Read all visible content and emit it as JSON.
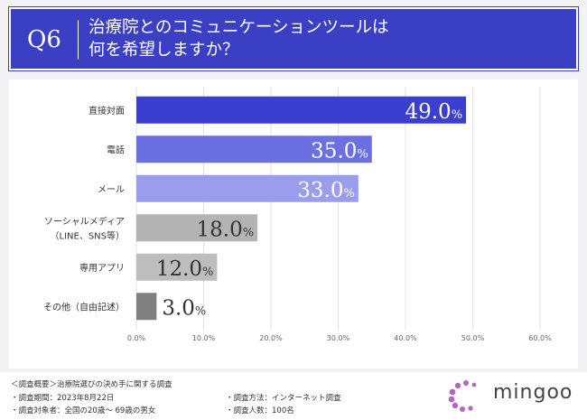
{
  "header": {
    "badge": "Q6",
    "title": "治療院とのコミュニケーションツールは\n何を希望しますか？"
  },
  "chart_data": {
    "type": "bar",
    "orientation": "horizontal",
    "categories": [
      {
        "lines": [
          "直接対面"
        ]
      },
      {
        "lines": [
          "電話"
        ]
      },
      {
        "lines": [
          "メール"
        ]
      },
      {
        "lines": [
          "ソーシャルメディア",
          "（LINE、SNS等）"
        ]
      },
      {
        "lines": [
          "専用アプリ"
        ]
      },
      {
        "lines": [
          "その他（自由記述）"
        ]
      }
    ],
    "values": [
      49.0,
      35.0,
      33.0,
      18.0,
      12.0,
      3.0
    ],
    "value_unit": "%",
    "bar_colors": [
      "#3a3fcf",
      "#6b6fe0",
      "#9a9deb",
      "#b3b3b3",
      "#bdbdbd",
      "#808080"
    ],
    "xlim": [
      0,
      60
    ],
    "xticks": [
      "0.0%",
      "10.0%",
      "20.0%",
      "30.0%",
      "40.0%",
      "50.0%",
      "60.0%"
    ],
    "grid": true
  },
  "footer": {
    "summary": "＜調査概要＞治療院選びの決め手に関する調査",
    "period": "・調査期間：2023年8月22日",
    "method": "・調査方法：インターネット調査",
    "target": "・調査対象者：全国の20歳～ 69歳の男女",
    "count": "・調査人数：100名"
  },
  "logo": {
    "text": "mingoo",
    "color": "#a24fb0"
  }
}
